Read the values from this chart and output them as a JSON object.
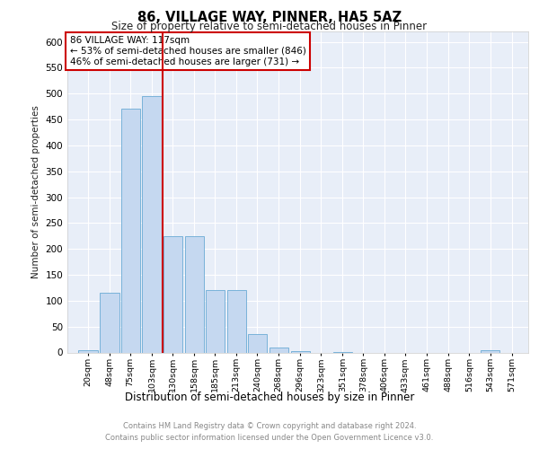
{
  "title": "86, VILLAGE WAY, PINNER, HA5 5AZ",
  "subtitle": "Size of property relative to semi-detached houses in Pinner",
  "xlabel": "Distribution of semi-detached houses by size in Pinner",
  "ylabel": "Number of semi-detached properties",
  "footer_line1": "Contains HM Land Registry data © Crown copyright and database right 2024.",
  "footer_line2": "Contains public sector information licensed under the Open Government Licence v3.0.",
  "annotation_line1": "86 VILLAGE WAY: 117sqm",
  "annotation_line2": "← 53% of semi-detached houses are smaller (846)",
  "annotation_line3": "46% of semi-detached houses are larger (731) →",
  "property_value": 117,
  "bar_color": "#c5d8f0",
  "bar_edge_color": "#6aaad4",
  "vline_color": "#cc0000",
  "annotation_box_edge_color": "#cc0000",
  "plot_background": "#e8eef8",
  "grid_color": "#ffffff",
  "categories": [
    "20sqm",
    "48sqm",
    "75sqm",
    "103sqm",
    "130sqm",
    "158sqm",
    "185sqm",
    "213sqm",
    "240sqm",
    "268sqm",
    "296sqm",
    "323sqm",
    "351sqm",
    "378sqm",
    "406sqm",
    "433sqm",
    "461sqm",
    "488sqm",
    "516sqm",
    "543sqm",
    "571sqm"
  ],
  "bin_centers": [
    20,
    48,
    75,
    103,
    130,
    158,
    185,
    213,
    240,
    268,
    296,
    323,
    351,
    378,
    406,
    433,
    461,
    488,
    516,
    543,
    571
  ],
  "bin_width": 27,
  "values": [
    5,
    115,
    470,
    495,
    225,
    225,
    120,
    120,
    35,
    10,
    2,
    0,
    1,
    0,
    0,
    0,
    0,
    0,
    0,
    5,
    0
  ],
  "ylim": [
    0,
    620
  ],
  "yticks": [
    0,
    50,
    100,
    150,
    200,
    250,
    300,
    350,
    400,
    450,
    500,
    550,
    600
  ]
}
